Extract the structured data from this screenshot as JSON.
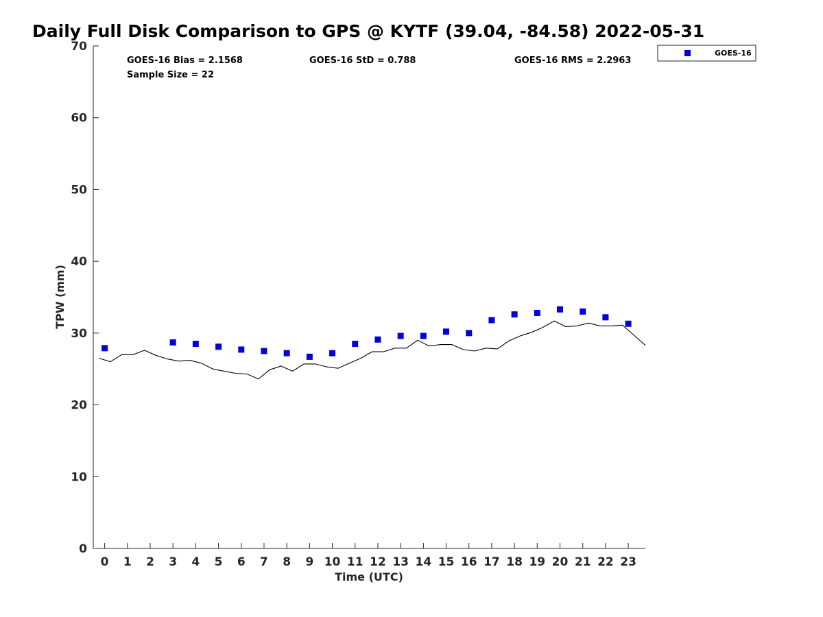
{
  "chart_data": {
    "type": "scatter",
    "title": "Daily Full Disk Comparison to GPS @ KYTF (39.04, -84.58) 2022-05-31",
    "xlabel": "Time (UTC)",
    "ylabel": "TPW (mm)",
    "xlim": [
      -0.5,
      23.75
    ],
    "ylim": [
      0,
      70
    ],
    "x_ticks": [
      0,
      1,
      2,
      3,
      4,
      5,
      6,
      7,
      8,
      9,
      10,
      11,
      12,
      13,
      14,
      15,
      16,
      17,
      18,
      19,
      20,
      21,
      22,
      23
    ],
    "y_ticks": [
      0,
      10,
      20,
      30,
      40,
      50,
      60,
      70
    ],
    "grid": false,
    "legend_position": "top-right, outside plot",
    "stats": [
      "GOES-16 Bias = 2.1568",
      "GOES-16 StD = 0.788",
      "GOES-16 RMS = 2.2963",
      "Sample Size = 22"
    ],
    "series": [
      {
        "name": "GOES-16",
        "marker": "square",
        "color": "#0000dd",
        "x": [
          0,
          3,
          4,
          5,
          6,
          7,
          8,
          9,
          10,
          11,
          12,
          13,
          14,
          15,
          16,
          17,
          18,
          19,
          20,
          21,
          22,
          23
        ],
        "y": [
          27.9,
          28.7,
          28.5,
          28.1,
          27.7,
          27.5,
          27.2,
          26.7,
          27.2,
          28.5,
          29.1,
          29.6,
          29.6,
          30.2,
          30.0,
          31.8,
          32.6,
          32.8,
          33.3,
          33.0,
          32.2,
          31.3
        ]
      },
      {
        "marker": "line",
        "color": "#000000",
        "x": [
          -0.25,
          0.25,
          0.75,
          1.25,
          1.75,
          2.25,
          2.75,
          3.25,
          3.75,
          4.25,
          4.75,
          5.25,
          5.75,
          6.25,
          6.75,
          7.25,
          7.75,
          8.25,
          8.75,
          9.25,
          9.75,
          10.25,
          10.75,
          11.25,
          11.75,
          12.25,
          12.75,
          13.25,
          13.75,
          14.25,
          14.75,
          15.25,
          15.75,
          16.25,
          16.75,
          17.25,
          17.75,
          18.25,
          18.75,
          19.25,
          19.75,
          20.25,
          20.75,
          21.25,
          21.75,
          22.25,
          22.75,
          23.25,
          23.75
        ],
        "y": [
          26.5,
          26.0,
          27.0,
          27.0,
          27.6,
          26.9,
          26.4,
          26.1,
          26.2,
          25.8,
          25.0,
          24.7,
          24.4,
          24.3,
          23.6,
          24.9,
          25.4,
          24.7,
          25.7,
          25.7,
          25.3,
          25.1,
          25.8,
          26.5,
          27.4,
          27.4,
          27.9,
          27.9,
          29.0,
          28.2,
          28.4,
          28.4,
          27.7,
          27.5,
          27.9,
          27.8,
          28.9,
          29.6,
          30.1,
          30.8,
          31.7,
          30.9,
          31.0,
          31.4,
          31.0,
          31.0,
          31.1,
          29.7,
          28.3
        ]
      }
    ]
  }
}
